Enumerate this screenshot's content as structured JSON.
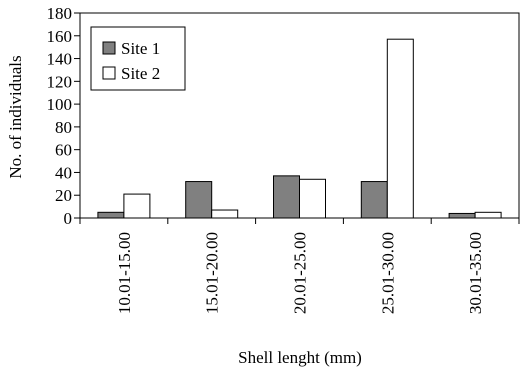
{
  "chart_data": {
    "type": "bar",
    "categories": [
      "10.01-15.00",
      "15.01-20.00",
      "20.01-25.00",
      "25.01-30.00",
      "30.01-35.00"
    ],
    "series": [
      {
        "name": "Site 1",
        "values": [
          5,
          32,
          37,
          32,
          4
        ],
        "color": "#808080"
      },
      {
        "name": "Site 2",
        "values": [
          21,
          7,
          34,
          157,
          5
        ],
        "color": "#ffffff"
      }
    ],
    "xlabel": "Shell lenght (mm)",
    "ylabel": "No. of individuals",
    "ylim": [
      0,
      180
    ],
    "yticks": [
      0,
      20,
      40,
      60,
      80,
      100,
      120,
      140,
      160,
      180
    ],
    "grid": false,
    "legend_position": "top-left"
  }
}
